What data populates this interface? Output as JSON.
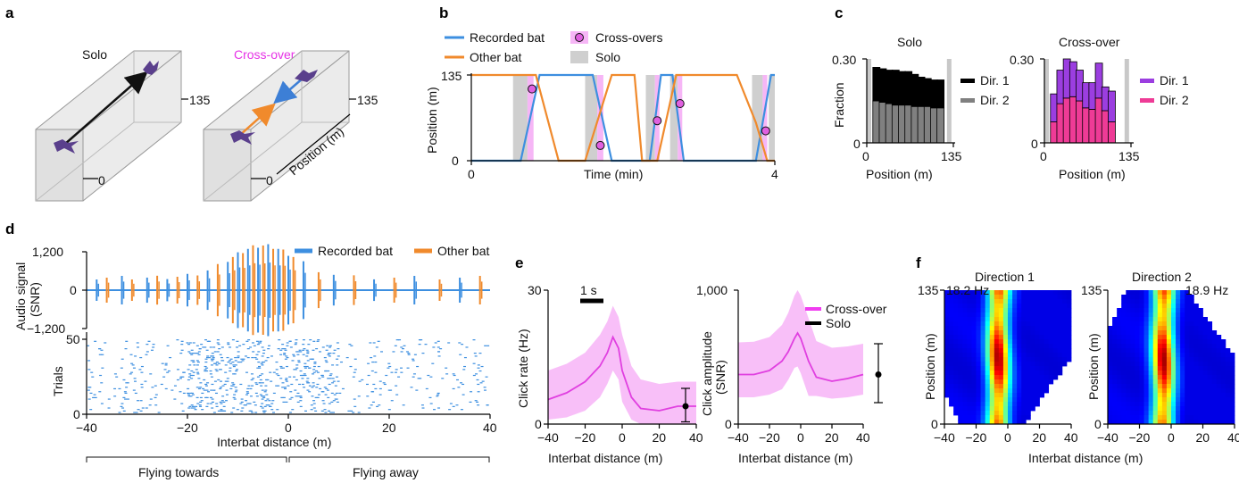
{
  "panels": {
    "a": {
      "label": "a",
      "solo_title": "Solo",
      "cross_title": "Cross-over",
      "tick_top": "135",
      "tick_zero": "0",
      "axis_label": "Position (m)",
      "colors": {
        "solo_arrow": "#111111",
        "approach_arrow": "#f08a2c",
        "recorded_arrow": "#3d7fd6",
        "cross_title": "#e632e6"
      }
    },
    "b": {
      "label": "b",
      "legend": {
        "recorded": "Recorded bat",
        "other": "Other bat",
        "cross": "Cross-overs",
        "solo": "Solo"
      },
      "ylabel": "Position (m)",
      "xlabel": "Time (min)",
      "yticks": [
        "0",
        "135"
      ],
      "xticks": [
        "0",
        "4"
      ]
    },
    "c": {
      "label": "c",
      "ylabel": "Fraction",
      "xlabel_solo": "Position (m)",
      "xlabel_cross": "Position (m)",
      "ytick_top": "0.30",
      "ytick_zero": "0",
      "xtick_zero": "0",
      "xtick_max": "135",
      "solo_title": "Solo",
      "cross_title": "Cross-over",
      "solo_legend": [
        "Dir. 1",
        "Dir. 2"
      ],
      "cross_legend": [
        "Dir. 1",
        "Dir. 2"
      ]
    },
    "d": {
      "label": "d",
      "legend": {
        "recorded": "Recorded bat",
        "other": "Other bat"
      },
      "ylabel_audio": "Audio signal\n(SNR)",
      "ylabel_audio_l1": "Audio signal",
      "ylabel_audio_l2": "(SNR)",
      "audio_ticks": [
        "1,200",
        "0",
        "−1,200"
      ],
      "ylabel_trials": "Trials",
      "trial_ticks": [
        "50",
        "0"
      ],
      "xticks": [
        "−40",
        "−20",
        "0",
        "20",
        "40"
      ],
      "xlabel": "Interbat distance (m)",
      "bracket_left": "Flying towards",
      "bracket_right": "Flying away"
    },
    "e": {
      "label": "e",
      "scalebar": "1 s",
      "left_ylabel": "Click rate (Hz)",
      "left_yticks": [
        "30",
        "0"
      ],
      "right_ylabel_l1": "Click amplitude",
      "right_ylabel_l2": "(SNR)",
      "right_yticks": [
        "1,000",
        "0"
      ],
      "xticks": [
        "−40",
        "−20",
        "0",
        "20",
        "40"
      ],
      "xlabel": "Interbat distance (m)",
      "legend": [
        "Cross-over",
        "Solo"
      ]
    },
    "f": {
      "label": "f",
      "title_1": "Direction 1",
      "title_2": "Direction 2",
      "peak_1": "18.2 Hz",
      "peak_2": "18.9 Hz",
      "ylabel": "Position (m)",
      "yticks": [
        "135",
        "0"
      ],
      "xticks": [
        "−40",
        "−20",
        "0",
        "20",
        "40"
      ],
      "xlabel": "Interbat distance (m)"
    }
  },
  "chart_data": [
    {
      "panel": "b",
      "type": "line",
      "xlabel": "Time (min)",
      "ylabel": "Position (m)",
      "xlim": [
        0,
        4
      ],
      "ylim": [
        0,
        135
      ],
      "series": [
        {
          "name": "Recorded bat",
          "color": "#3d8fe0",
          "x": [
            0,
            0.6,
            0.65,
            0.9,
            1.6,
            1.85,
            2.35,
            2.5,
            2.65,
            2.8,
            3.75,
            3.95,
            4.0
          ],
          "y": [
            0,
            0,
            0,
            135,
            135,
            0,
            0,
            135,
            135,
            0,
            0,
            135,
            135
          ]
        },
        {
          "name": "Other bat",
          "color": "#f08a2c",
          "x": [
            0,
            0.6,
            0.85,
            1.15,
            1.5,
            1.85,
            2.15,
            2.25,
            2.45,
            2.7,
            3.15,
            3.5,
            3.75,
            3.9,
            4.0
          ],
          "y": [
            135,
            135,
            135,
            0,
            0,
            135,
            135,
            0,
            0,
            135,
            135,
            135,
            60,
            0,
            0
          ]
        }
      ],
      "crossovers": [
        {
          "x": 0.8,
          "y": 113
        },
        {
          "x": 1.7,
          "y": 24
        },
        {
          "x": 2.45,
          "y": 63
        },
        {
          "x": 2.75,
          "y": 90
        },
        {
          "x": 3.88,
          "y": 47
        }
      ],
      "cross_shading": [
        [
          0.74,
          0.82
        ],
        [
          1.66,
          1.74
        ],
        [
          2.42,
          2.48
        ],
        [
          2.72,
          2.78
        ],
        [
          3.84,
          3.9
        ]
      ],
      "solo_shading": [
        [
          0.55,
          0.74
        ],
        [
          1.5,
          1.66
        ],
        [
          2.3,
          2.42
        ],
        [
          2.62,
          2.72
        ],
        [
          3.7,
          3.84
        ],
        [
          3.92,
          4.0
        ]
      ],
      "colors": {
        "cross": "#f6b6f6",
        "solo": "#cfcfcf",
        "marker": "#e060e0"
      }
    },
    {
      "panel": "c-solo",
      "type": "bar",
      "title": "Solo",
      "xlabel": "Position (m)",
      "ylabel": "Fraction",
      "xlim": [
        0,
        135
      ],
      "ylim": [
        0,
        0.3
      ],
      "categories": [
        15,
        25,
        35,
        45,
        55,
        65,
        75,
        85,
        95,
        105,
        115
      ],
      "series": [
        {
          "name": "Dir. 2",
          "color": "#808080",
          "values": [
            0.15,
            0.145,
            0.14,
            0.135,
            0.135,
            0.135,
            0.13,
            0.13,
            0.13,
            0.125,
            0.125
          ]
        },
        {
          "name": "Dir. 1",
          "color": "#000000",
          "values": [
            0.12,
            0.12,
            0.12,
            0.125,
            0.12,
            0.12,
            0.115,
            0.105,
            0.1,
            0.1,
            0.1
          ]
        }
      ],
      "edge_bars": {
        "color": "#c8c8c8",
        "value": 0.3
      }
    },
    {
      "panel": "c-cross",
      "type": "bar",
      "title": "Cross-over",
      "xlabel": "Position (m)",
      "ylabel": "Fraction",
      "xlim": [
        0,
        135
      ],
      "ylim": [
        0,
        0.3
      ],
      "categories": [
        15,
        25,
        35,
        45,
        55,
        65,
        75,
        85,
        95,
        105,
        115
      ],
      "series": [
        {
          "name": "Dir. 2",
          "color": "#ee3b96",
          "values": [
            0.075,
            0.14,
            0.16,
            0.165,
            0.15,
            0.125,
            0.12,
            0.16,
            0.115,
            0.075,
            0.0
          ]
        },
        {
          "name": "Dir. 1",
          "color": "#9b3ee0",
          "values": [
            0.1,
            0.12,
            0.14,
            0.125,
            0.11,
            0.09,
            0.095,
            0.125,
            0.085,
            0.11,
            0.0
          ]
        }
      ],
      "edge_bars": {
        "color": "#c8c8c8",
        "value": 0.3
      }
    },
    {
      "panel": "d",
      "type": "line",
      "xlabel": "Interbat distance (m)",
      "xlim": [
        -40,
        40
      ],
      "audio_ylim": [
        -1200,
        1200
      ],
      "trial_ylim": [
        0,
        50
      ],
      "series": [
        {
          "name": "Recorded bat",
          "color": "#3d8fe0"
        },
        {
          "name": "Other bat",
          "color": "#f08a2c"
        }
      ]
    },
    {
      "panel": "e-left",
      "type": "line",
      "xlabel": "Interbat distance (m)",
      "ylabel": "Click rate (Hz)",
      "xlim": [
        -40,
        40
      ],
      "ylim": [
        0,
        30
      ],
      "x": [
        -40,
        -30,
        -20,
        -12,
        -8,
        -5,
        -2,
        0,
        5,
        10,
        20,
        30,
        40
      ],
      "series": [
        {
          "name": "Cross-over",
          "color": "#e040e0",
          "mean": [
            5.5,
            7,
            9.5,
            13,
            16,
            19.5,
            17,
            12,
            6,
            3.5,
            3,
            4,
            4
          ],
          "upper": [
            12,
            13.5,
            16,
            20,
            23,
            26.5,
            24,
            20,
            13,
            10,
            9,
            9.5,
            9.5
          ],
          "lower": [
            1,
            1.5,
            3,
            6,
            9,
            12,
            10,
            5,
            1,
            0,
            0,
            0,
            0
          ]
        }
      ],
      "solo": {
        "name": "Solo",
        "mean": 4,
        "lower": 0.5,
        "upper": 8
      }
    },
    {
      "panel": "e-right",
      "type": "line",
      "xlabel": "Interbat distance (m)",
      "ylabel": "Click amplitude (SNR)",
      "xlim": [
        -40,
        40
      ],
      "ylim": [
        0,
        1000
      ],
      "x": [
        -40,
        -30,
        -20,
        -12,
        -8,
        -4,
        -2,
        0,
        5,
        10,
        20,
        30,
        40
      ],
      "series": [
        {
          "name": "Cross-over",
          "color": "#e040e0",
          "mean": [
            370,
            370,
            400,
            470,
            540,
            640,
            680,
            640,
            470,
            350,
            320,
            340,
            370
          ],
          "upper": [
            610,
            615,
            650,
            740,
            830,
            960,
            1000,
            960,
            790,
            620,
            570,
            580,
            600
          ],
          "lower": [
            200,
            200,
            220,
            260,
            330,
            420,
            430,
            380,
            210,
            210,
            190,
            200,
            220
          ]
        }
      ],
      "solo": {
        "name": "Solo",
        "mean": 370,
        "lower": 160,
        "upper": 600
      }
    },
    {
      "panel": "f-dir1",
      "type": "heatmap",
      "title": "Direction 1",
      "xlabel": "Interbat distance (m)",
      "ylabel": "Position (m)",
      "xlim": [
        -40,
        40
      ],
      "ylim": [
        0,
        135
      ],
      "peak_rate": "18.2 Hz",
      "peak_x": -6
    },
    {
      "panel": "f-dir2",
      "type": "heatmap",
      "title": "Direction 2",
      "xlabel": "Interbat distance (m)",
      "ylabel": "Position (m)",
      "xlim": [
        -40,
        40
      ],
      "ylim": [
        0,
        135
      ],
      "peak_rate": "18.9 Hz",
      "peak_x": -5
    }
  ]
}
